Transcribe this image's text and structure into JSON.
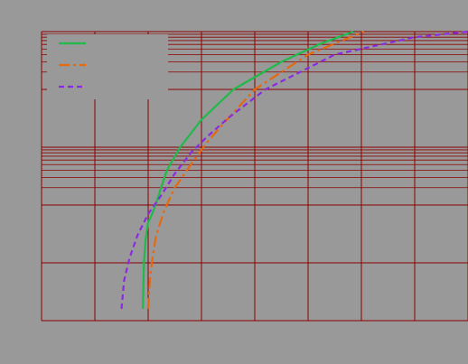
{
  "chart_data": {
    "type": "line",
    "title": "",
    "xlabel": "",
    "ylabel": "",
    "x_scale": "linear",
    "y_scale": "log",
    "xlim": [
      -2,
      6
    ],
    "ylim": [
      0.0001,
      10
    ],
    "grid": true,
    "legend_placement": "top-left",
    "colors": {
      "background": "#999999",
      "grid": "#8b0000",
      "legend_background": "#999999"
    },
    "series": [
      {
        "color": "#1fba4a",
        "line_style": "solid",
        "points": [
          [
            -0.1,
            0.00016
          ],
          [
            -0.08,
            0.001
          ],
          [
            -0.05,
            0.0025
          ],
          [
            0.0,
            0.005
          ],
          [
            0.1,
            0.008
          ],
          [
            0.2,
            0.015
          ],
          [
            0.35,
            0.04
          ],
          [
            0.6,
            0.1
          ],
          [
            1.0,
            0.3
          ],
          [
            1.6,
            1.0
          ],
          [
            2.5,
            3.0
          ],
          [
            3.2,
            6.0
          ],
          [
            3.85,
            10.0
          ]
        ]
      },
      {
        "color": "#e6680f",
        "line_style": "dash-dot",
        "points": [
          [
            0.0,
            0.00016
          ],
          [
            0.03,
            0.0005
          ],
          [
            0.08,
            0.0012
          ],
          [
            0.15,
            0.003
          ],
          [
            0.3,
            0.008
          ],
          [
            0.5,
            0.02
          ],
          [
            0.8,
            0.05
          ],
          [
            1.1,
            0.12
          ],
          [
            1.4,
            0.25
          ],
          [
            2.0,
            1.0
          ],
          [
            3.0,
            4.0
          ],
          [
            4.05,
            10.0
          ]
        ]
      },
      {
        "color": "#8a2be2",
        "line_style": "dashed",
        "points": [
          [
            -0.5,
            0.00016
          ],
          [
            -0.45,
            0.0005
          ],
          [
            -0.35,
            0.0012
          ],
          [
            -0.2,
            0.003
          ],
          [
            0.0,
            0.007
          ],
          [
            0.25,
            0.015
          ],
          [
            0.5,
            0.035
          ],
          [
            0.8,
            0.08
          ],
          [
            1.1,
            0.15
          ],
          [
            1.5,
            0.32
          ],
          [
            2.2,
            1.0
          ],
          [
            3.5,
            4.0
          ],
          [
            5.0,
            8.0
          ],
          [
            6.0,
            10.0
          ]
        ]
      }
    ]
  }
}
